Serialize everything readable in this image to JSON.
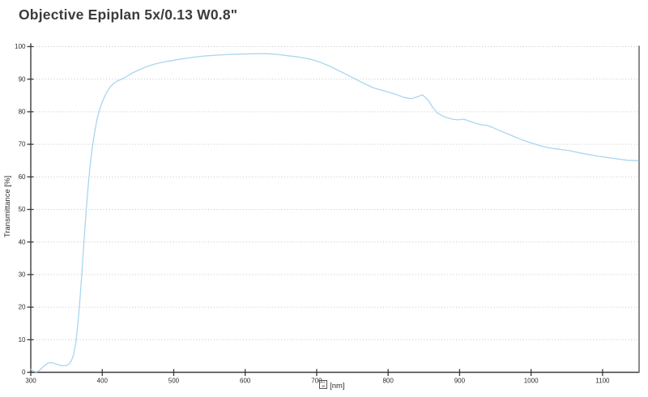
{
  "title": "Objective Epiplan 5x/0.13 W0.8\"",
  "chart_data": {
    "type": "line",
    "title": "Objective Epiplan 5x/0.13 W0.8\"",
    "xlabel": "[nm]",
    "xlabel_missing_glyph": {
      "meaning": "lambda-symbol-rendered-as-tofu-box",
      "rows": [
        "03",
        "BB"
      ]
    },
    "ylabel": "Transmittance [%]",
    "xlim": [
      300,
      1150
    ],
    "ylim": [
      0,
      100
    ],
    "x_ticks": [
      300,
      400,
      500,
      600,
      700,
      800,
      900,
      1000,
      1100
    ],
    "x_tick_labels": [
      "300",
      "400",
      "500",
      "600",
      "700",
      "800",
      "900",
      "1000",
      "1100"
    ],
    "y_ticks": [
      0,
      10,
      20,
      30,
      40,
      50,
      60,
      70,
      80,
      90,
      100
    ],
    "y_tick_labels": [
      "0",
      "10",
      "20",
      "30",
      "40",
      "50",
      "60",
      "70",
      "80",
      "90",
      "100"
    ],
    "grid": "horizontal-dotted",
    "legend": "none",
    "line_color": "#a9d6ef",
    "axis_color": "#3a3a3a",
    "grid_color": "#c4c4c4",
    "series": [
      {
        "name": "transmittance",
        "x": [
          300,
          304,
          308,
          312,
          316,
          320,
          324,
          328,
          332,
          336,
          340,
          345,
          350,
          354,
          357,
          360,
          363,
          366,
          369,
          372,
          375,
          378,
          381,
          384,
          387,
          390,
          393,
          396,
          400,
          404,
          408,
          412,
          416,
          420,
          425,
          430,
          436,
          442,
          448,
          455,
          462,
          470,
          478,
          487,
          497,
          508,
          520,
          533,
          547,
          562,
          578,
          595,
          612,
          630,
          645,
          660,
          675,
          690,
          705,
          720,
          735,
          750,
          765,
          780,
          795,
          810,
          822,
          832,
          840,
          848,
          856,
          862,
          868,
          875,
          882,
          890,
          898,
          906,
          914,
          922,
          930,
          938,
          946,
          955,
          965,
          975,
          985,
          995,
          1005,
          1015,
          1025,
          1035,
          1045,
          1055,
          1065,
          1075,
          1085,
          1095,
          1105,
          1115,
          1125,
          1135,
          1145,
          1150
        ],
        "y": [
          0.9,
          0.3,
          0.1,
          0.6,
          1.4,
          2.2,
          2.8,
          3.0,
          2.8,
          2.5,
          2.2,
          2.0,
          2.1,
          2.6,
          3.6,
          5.5,
          9,
          15,
          23,
          32,
          42,
          51,
          59,
          65.5,
          70.5,
          74.5,
          78,
          80.5,
          83,
          85,
          86.6,
          87.8,
          88.7,
          89.3,
          89.8,
          90.3,
          91.1,
          91.9,
          92.5,
          93.2,
          93.8,
          94.4,
          94.9,
          95.3,
          95.7,
          96.1,
          96.5,
          96.9,
          97.2,
          97.4,
          97.6,
          97.7,
          97.8,
          97.8,
          97.6,
          97.2,
          96.8,
          96.2,
          95.2,
          93.8,
          92.2,
          90.5,
          88.8,
          87.3,
          86.4,
          85.4,
          84.4,
          84.0,
          84.5,
          85.2,
          83.5,
          81.5,
          79.8,
          78.8,
          78.2,
          77.7,
          77.5,
          77.7,
          77.1,
          76.5,
          76.0,
          75.8,
          75.2,
          74.3,
          73.4,
          72.5,
          71.6,
          70.8,
          70.1,
          69.4,
          68.9,
          68.6,
          68.3,
          68.0,
          67.5,
          67.1,
          66.7,
          66.3,
          66.0,
          65.7,
          65.4,
          65.1,
          65.0,
          65.0
        ]
      }
    ]
  }
}
